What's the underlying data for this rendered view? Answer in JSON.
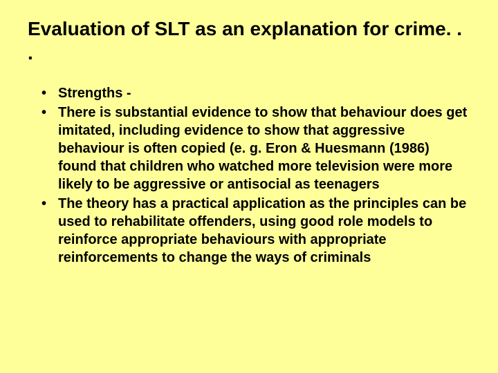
{
  "slide": {
    "background_color": "#ffff99",
    "text_color": "#000000",
    "title": "Evaluation of SLT as an explanation for crime. . .",
    "title_fontsize": 28,
    "title_weight": "bold",
    "bullet_fontsize": 20,
    "bullet_weight": "bold",
    "bullets": [
      "Strengths -",
      "There is substantial evidence to show that behaviour does get imitated, including evidence to show that aggressive behaviour is often copied (e. g. Eron & Huesmann (1986) found that children who watched more television were more likely to be aggressive or antisocial as teenagers",
      "The theory has a practical application as the principles can be used to rehabilitate offenders, using good role models to reinforce appropriate behaviours with appropriate reinforcements to change the ways of criminals"
    ]
  }
}
